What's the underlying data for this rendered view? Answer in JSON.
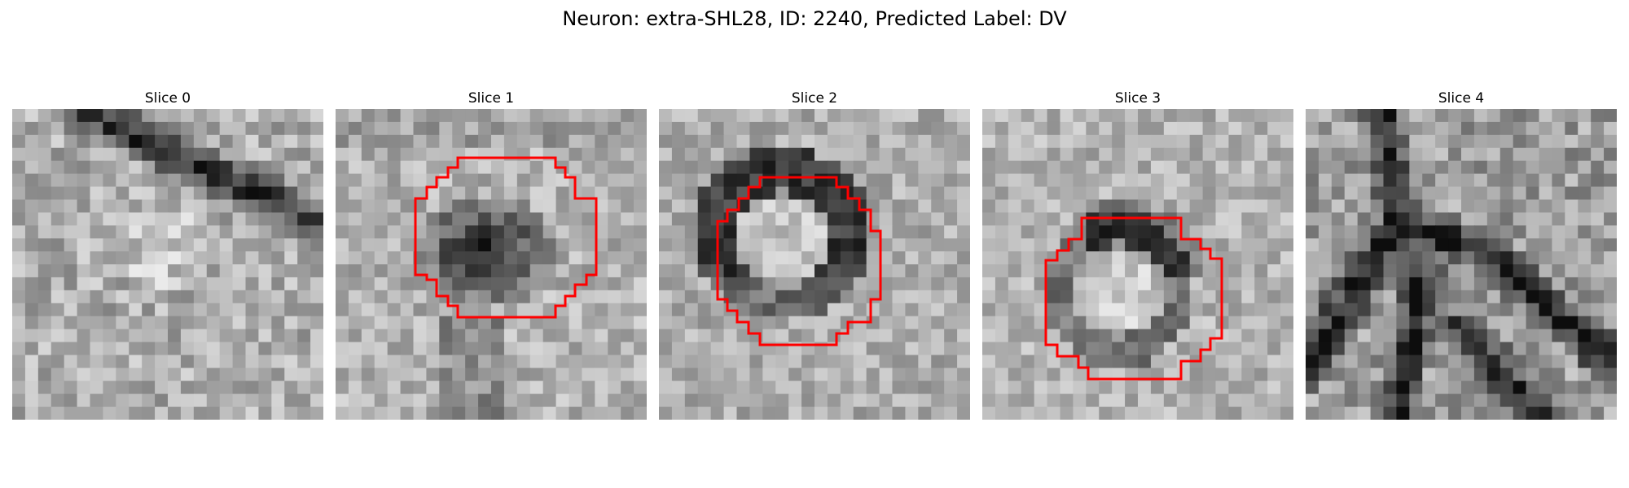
{
  "figure": {
    "title": "Neuron: extra-SHL28, ID: 2240, Predicted Label: DV",
    "contour_color": "#ff0000",
    "background_color": "#ffffff"
  },
  "slices": [
    {
      "label": "Slice 0",
      "has_contour": false
    },
    {
      "label": "Slice 1",
      "has_contour": true
    },
    {
      "label": "Slice 2",
      "has_contour": true
    },
    {
      "label": "Slice 3",
      "has_contour": true
    },
    {
      "label": "Slice 4",
      "has_contour": false
    }
  ]
}
